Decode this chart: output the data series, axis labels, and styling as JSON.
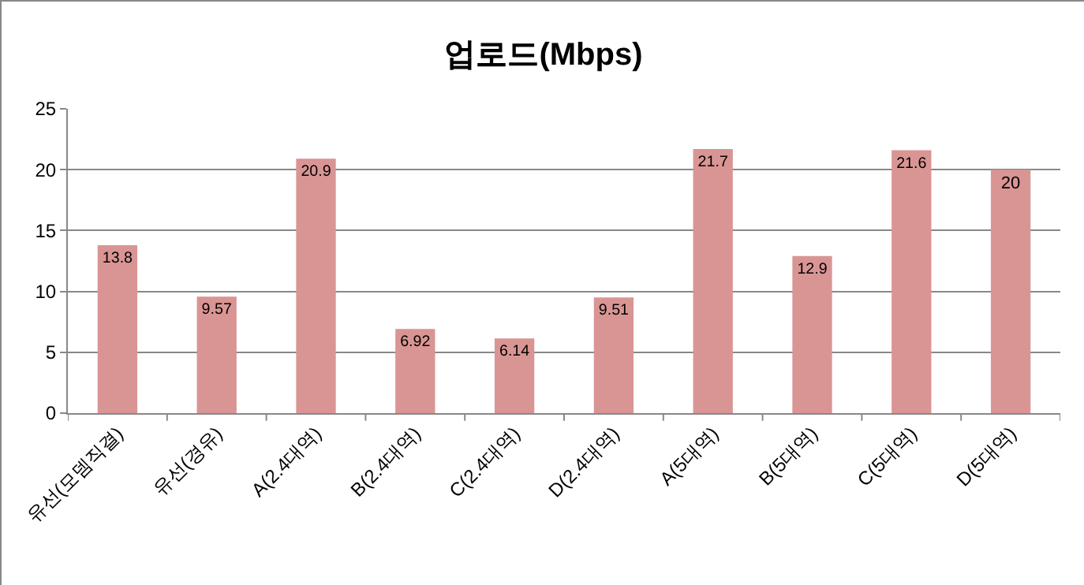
{
  "chart_data": {
    "type": "bar",
    "title": "업로드(Mbps)",
    "categories": [
      "유선(모뎀직결)",
      "유선(경유)",
      "A(2.4대역)",
      "B(2.4대역)",
      "C(2.4대역)",
      "D(2.4대역)",
      "A(5대역)",
      "B(5대역)",
      "C(5대역)",
      "D(5대역)"
    ],
    "values": [
      13.8,
      9.57,
      20.9,
      6.92,
      6.14,
      9.51,
      21.7,
      12.9,
      21.6,
      20
    ],
    "color": "#d99594",
    "ylim": [
      0,
      25
    ],
    "yticks": [
      0,
      5,
      10,
      15,
      20,
      25
    ],
    "grid": "y",
    "data_labels": true,
    "legend": false
  }
}
